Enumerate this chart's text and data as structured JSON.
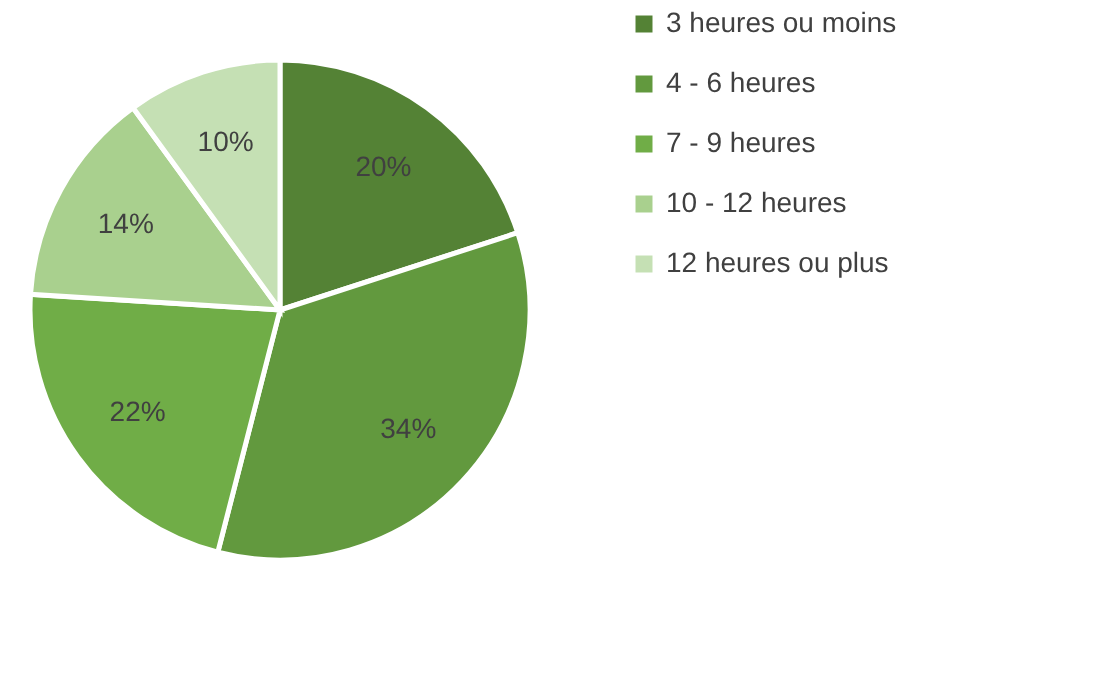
{
  "chart_data": {
    "type": "pie",
    "categories": [
      "3 heures ou moins",
      "4 - 6 heures",
      "7 - 9 heures",
      "10 - 12 heures",
      "12 heures ou plus"
    ],
    "values": [
      20,
      34,
      22,
      14,
      10
    ],
    "value_labels": [
      "20%",
      "34%",
      "22%",
      "14%",
      "10%"
    ],
    "colors": [
      "#548235",
      "#62993e",
      "#70ad47",
      "#a9d08e",
      "#c5e0b4"
    ],
    "legend": "right"
  }
}
